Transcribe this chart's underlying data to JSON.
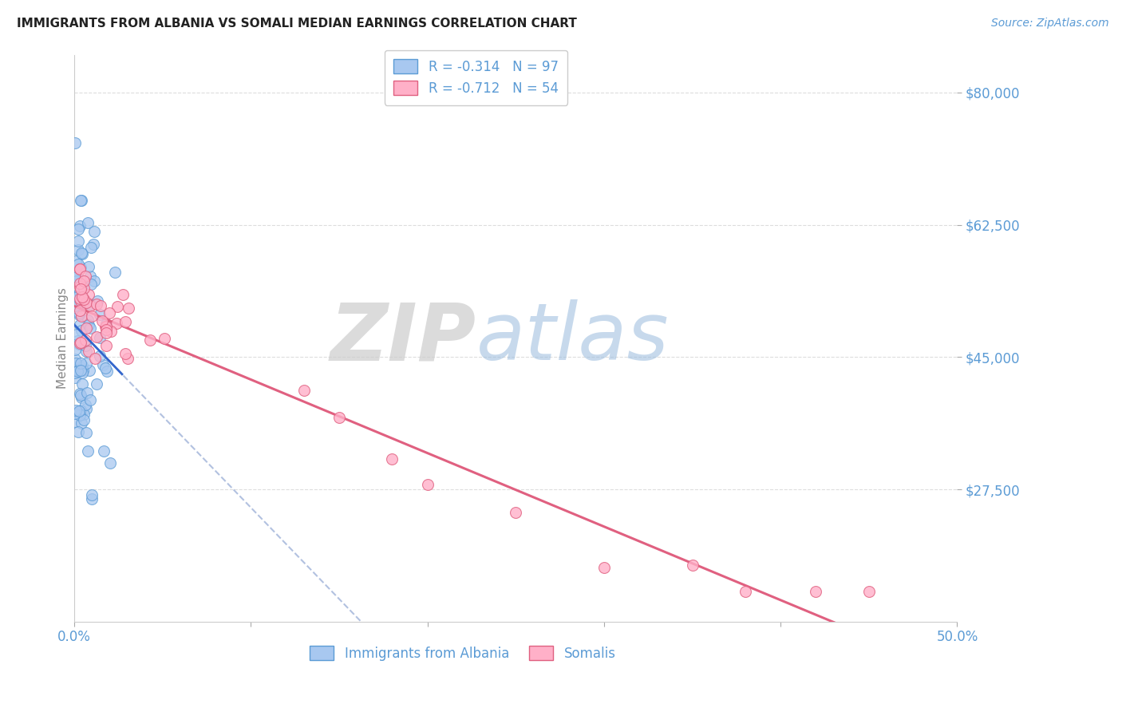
{
  "title": "IMMIGRANTS FROM ALBANIA VS SOMALI MEDIAN EARNINGS CORRELATION CHART",
  "source": "Source: ZipAtlas.com",
  "ylabel": "Median Earnings",
  "xlim": [
    0.0,
    0.5
  ],
  "ylim": [
    10000,
    85000
  ],
  "ytick_vals": [
    27500,
    45000,
    62500,
    80000
  ],
  "ytick_labels": [
    "$27,500",
    "$45,000",
    "$62,500",
    "$80,000"
  ],
  "xtick_vals": [
    0.0,
    0.1,
    0.2,
    0.3,
    0.4,
    0.5
  ],
  "xtick_labels": [
    "0.0%",
    "",
    "",
    "",
    "",
    "50.0%"
  ],
  "albania_color": "#a8c8f0",
  "albania_edge_color": "#5b9bd5",
  "somali_color": "#ffb0c8",
  "somali_edge_color": "#e06080",
  "albania_R": -0.314,
  "albania_N": 97,
  "somali_R": -0.712,
  "somali_N": 54,
  "albania_trend_dash_color": "#aabbdd",
  "albania_trend_solid_color": "#3366cc",
  "somali_trend_color": "#e06080",
  "label_color": "#5b9bd5",
  "title_color": "#222222",
  "grid_color": "#dddddd",
  "legend_albania_label": "Immigrants from Albania",
  "legend_somali_label": "Somalis",
  "watermark_zip_color": "#cccccc",
  "watermark_atlas_color": "#99bbdd",
  "background_color": "#ffffff",
  "r_color": "#e06080",
  "n_color": "#5b9bd5"
}
